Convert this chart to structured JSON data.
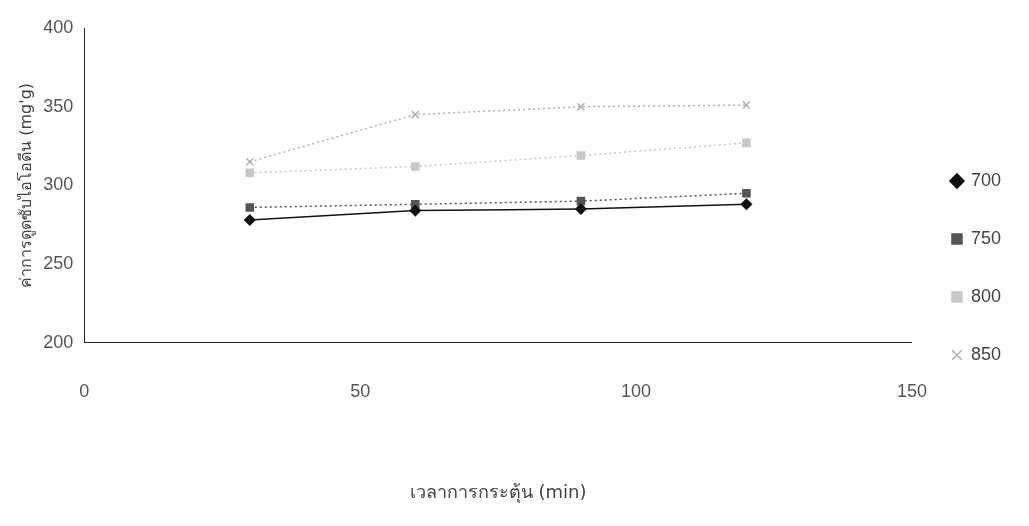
{
  "chart_data": {
    "type": "line",
    "xlabel": "เวลาการกระตุ้น (min)",
    "ylabel": "ค่าการดูดซับไอโอดีน (mg'g)",
    "x": [
      30,
      60,
      90,
      120
    ],
    "xlim": [
      0,
      150
    ],
    "xticks": [
      0,
      50,
      100,
      150
    ],
    "ylim": [
      200,
      400
    ],
    "yticks": [
      200,
      250,
      300,
      350,
      400
    ],
    "grid": false,
    "legend": "right",
    "series": [
      {
        "name": "700",
        "color": "#111111",
        "marker": "diamond",
        "line_style": "solid",
        "values": [
          278,
          284,
          285,
          288
        ]
      },
      {
        "name": "750",
        "color": "#555555",
        "marker": "square",
        "line_style": "dotted",
        "values": [
          286,
          288,
          290,
          295
        ]
      },
      {
        "name": "800",
        "color": "#c8c8c8",
        "marker": "square",
        "line_style": "dotted",
        "values": [
          308,
          312,
          319,
          327
        ]
      },
      {
        "name": "850",
        "color": "#b0b0b0",
        "marker": "cross",
        "line_style": "dotted",
        "values": [
          315,
          345,
          350,
          351
        ]
      }
    ]
  }
}
